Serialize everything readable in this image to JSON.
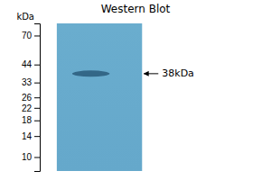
{
  "chart_data": {
    "type": "blot",
    "title": "Western Blot",
    "ylabel": "kDa",
    "values": [
      38
    ],
    "color": "#2a5a7a",
    "log": "y",
    "ylim": [
      8,
      85
    ],
    "yticks": [
      10,
      14,
      18,
      22,
      26,
      33,
      44,
      70
    ],
    "annotations": [
      {
        "text": "38kDa",
        "y": 38
      }
    ]
  }
}
